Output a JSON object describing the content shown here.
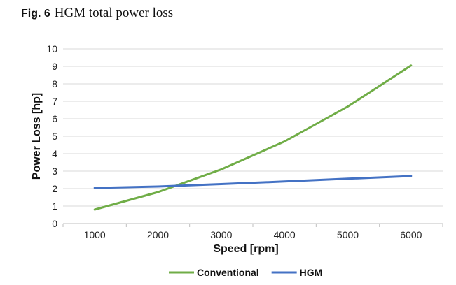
{
  "figure": {
    "label": "Fig. 6",
    "title": "HGM total power loss"
  },
  "chart_data": {
    "type": "line",
    "title": "",
    "xlabel": "Speed [rpm]",
    "ylabel": "Power Loss [hp]",
    "x": [
      1000,
      2000,
      3000,
      4000,
      5000,
      6000
    ],
    "xlim": [
      500,
      6500
    ],
    "x_ticks": [
      1000,
      2000,
      3000,
      4000,
      5000,
      6000
    ],
    "ylim": [
      0,
      10
    ],
    "y_ticks": [
      0,
      1,
      2,
      3,
      4,
      5,
      6,
      7,
      8,
      9,
      10
    ],
    "grid": "horizontal",
    "legend_position": "bottom",
    "series": [
      {
        "name": "Conventional",
        "color": "#70ad47",
        "values": [
          0.8,
          1.8,
          3.1,
          4.7,
          6.7,
          9.05
        ]
      },
      {
        "name": "HGM",
        "color": "#4472c4",
        "values": [
          2.04,
          2.12,
          2.26,
          2.41,
          2.57,
          2.72
        ]
      }
    ]
  }
}
